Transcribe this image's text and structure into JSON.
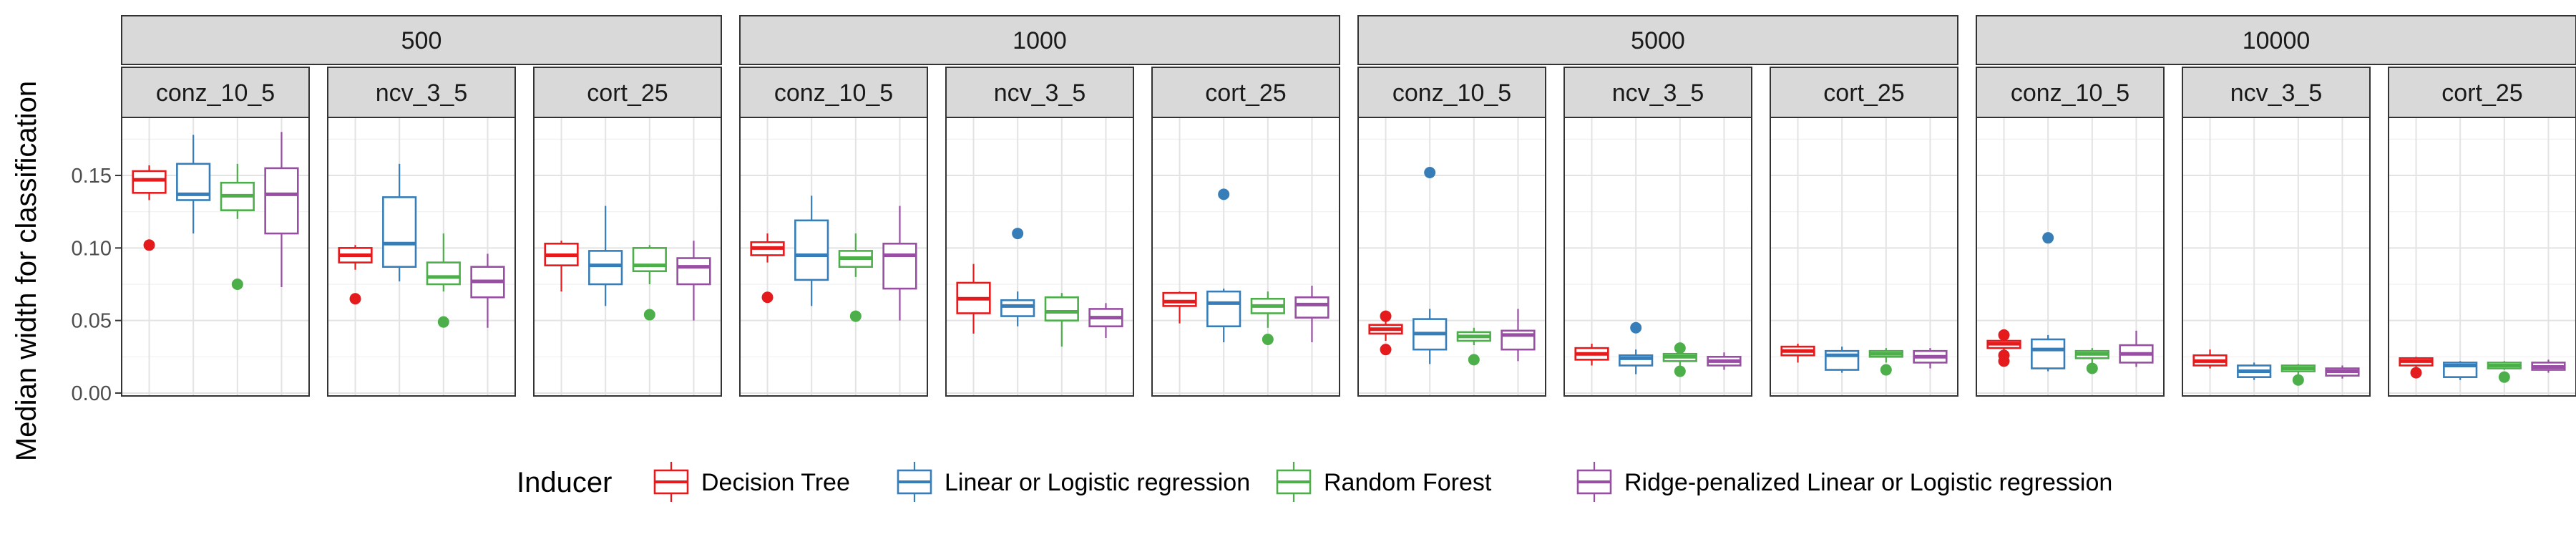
{
  "chart_data": {
    "type": "boxplot",
    "ylabel": "Median width for classification",
    "ylim": [
      -0.002,
      0.19
    ],
    "yticks": [
      0.0,
      0.05,
      0.1,
      0.15
    ],
    "ytick_labels": [
      "0.00",
      "0.05",
      "0.10",
      "0.15"
    ],
    "grid": true,
    "legend_position": "bottom",
    "legend": {
      "title": "Inducer",
      "entries": [
        {
          "name": "Decision Tree",
          "color": "#e41a1c"
        },
        {
          "name": "Linear or Logistic regression",
          "color": "#377eb8"
        },
        {
          "name": "Random Forest",
          "color": "#4daf4a"
        },
        {
          "name": "Ridge-penalized Linear or Logistic regression",
          "color": "#984ea3"
        }
      ]
    },
    "groups": [
      {
        "label": "500",
        "panels": [
          {
            "label": "conz_10_5",
            "boxes": [
              {
                "min": 0.133,
                "q1": 0.138,
                "median": 0.147,
                "q3": 0.153,
                "max": 0.157,
                "outliers": [
                  0.102
                ]
              },
              {
                "min": 0.11,
                "q1": 0.133,
                "median": 0.137,
                "q3": 0.158,
                "max": 0.178,
                "outliers": []
              },
              {
                "min": 0.12,
                "q1": 0.126,
                "median": 0.136,
                "q3": 0.145,
                "max": 0.158,
                "outliers": [
                  0.075
                ]
              },
              {
                "min": 0.073,
                "q1": 0.11,
                "median": 0.137,
                "q3": 0.155,
                "max": 0.18,
                "outliers": []
              }
            ]
          },
          {
            "label": "ncv_3_5",
            "boxes": [
              {
                "min": 0.085,
                "q1": 0.09,
                "median": 0.095,
                "q3": 0.1,
                "max": 0.102,
                "outliers": [
                  0.065
                ]
              },
              {
                "min": 0.077,
                "q1": 0.087,
                "median": 0.103,
                "q3": 0.135,
                "max": 0.158,
                "outliers": []
              },
              {
                "min": 0.07,
                "q1": 0.075,
                "median": 0.08,
                "q3": 0.09,
                "max": 0.11,
                "outliers": [
                  0.049
                ]
              },
              {
                "min": 0.045,
                "q1": 0.066,
                "median": 0.077,
                "q3": 0.087,
                "max": 0.096,
                "outliers": []
              }
            ]
          },
          {
            "label": "cort_25",
            "boxes": [
              {
                "min": 0.07,
                "q1": 0.088,
                "median": 0.095,
                "q3": 0.103,
                "max": 0.105,
                "outliers": []
              },
              {
                "min": 0.06,
                "q1": 0.075,
                "median": 0.088,
                "q3": 0.098,
                "max": 0.129,
                "outliers": []
              },
              {
                "min": 0.075,
                "q1": 0.084,
                "median": 0.088,
                "q3": 0.1,
                "max": 0.102,
                "outliers": [
                  0.054
                ]
              },
              {
                "min": 0.05,
                "q1": 0.075,
                "median": 0.087,
                "q3": 0.093,
                "max": 0.105,
                "outliers": []
              }
            ]
          }
        ]
      },
      {
        "label": "1000",
        "panels": [
          {
            "label": "conz_10_5",
            "boxes": [
              {
                "min": 0.09,
                "q1": 0.095,
                "median": 0.1,
                "q3": 0.104,
                "max": 0.11,
                "outliers": [
                  0.066
                ]
              },
              {
                "min": 0.06,
                "q1": 0.078,
                "median": 0.095,
                "q3": 0.119,
                "max": 0.136,
                "outliers": []
              },
              {
                "min": 0.08,
                "q1": 0.087,
                "median": 0.093,
                "q3": 0.098,
                "max": 0.11,
                "outliers": [
                  0.053
                ]
              },
              {
                "min": 0.05,
                "q1": 0.072,
                "median": 0.095,
                "q3": 0.103,
                "max": 0.129,
                "outliers": []
              }
            ]
          },
          {
            "label": "ncv_3_5",
            "boxes": [
              {
                "min": 0.041,
                "q1": 0.055,
                "median": 0.065,
                "q3": 0.076,
                "max": 0.089,
                "outliers": []
              },
              {
                "min": 0.046,
                "q1": 0.053,
                "median": 0.06,
                "q3": 0.064,
                "max": 0.07,
                "outliers": [
                  0.11
                ]
              },
              {
                "min": 0.032,
                "q1": 0.05,
                "median": 0.056,
                "q3": 0.066,
                "max": 0.069,
                "outliers": []
              },
              {
                "min": 0.038,
                "q1": 0.046,
                "median": 0.052,
                "q3": 0.058,
                "max": 0.062,
                "outliers": []
              }
            ]
          },
          {
            "label": "cort_25",
            "boxes": [
              {
                "min": 0.048,
                "q1": 0.06,
                "median": 0.063,
                "q3": 0.069,
                "max": 0.07,
                "outliers": []
              },
              {
                "min": 0.035,
                "q1": 0.046,
                "median": 0.062,
                "q3": 0.07,
                "max": 0.072,
                "outliers": [
                  0.137
                ]
              },
              {
                "min": 0.045,
                "q1": 0.055,
                "median": 0.06,
                "q3": 0.065,
                "max": 0.07,
                "outliers": [
                  0.037
                ]
              },
              {
                "min": 0.035,
                "q1": 0.052,
                "median": 0.061,
                "q3": 0.066,
                "max": 0.074,
                "outliers": []
              }
            ]
          }
        ]
      },
      {
        "label": "5000",
        "panels": [
          {
            "label": "conz_10_5",
            "boxes": [
              {
                "min": 0.036,
                "q1": 0.041,
                "median": 0.044,
                "q3": 0.047,
                "max": 0.05,
                "outliers": [
                  0.03,
                  0.053
                ]
              },
              {
                "min": 0.02,
                "q1": 0.03,
                "median": 0.041,
                "q3": 0.051,
                "max": 0.058,
                "outliers": [
                  0.152
                ]
              },
              {
                "min": 0.033,
                "q1": 0.036,
                "median": 0.039,
                "q3": 0.042,
                "max": 0.045,
                "outliers": [
                  0.023
                ]
              },
              {
                "min": 0.022,
                "q1": 0.03,
                "median": 0.04,
                "q3": 0.043,
                "max": 0.058,
                "outliers": []
              }
            ]
          },
          {
            "label": "ncv_3_5",
            "boxes": [
              {
                "min": 0.019,
                "q1": 0.023,
                "median": 0.027,
                "q3": 0.031,
                "max": 0.034,
                "outliers": []
              },
              {
                "min": 0.013,
                "q1": 0.019,
                "median": 0.024,
                "q3": 0.026,
                "max": 0.03,
                "outliers": [
                  0.045
                ]
              },
              {
                "min": 0.018,
                "q1": 0.022,
                "median": 0.025,
                "q3": 0.027,
                "max": 0.029,
                "outliers": [
                  0.015,
                  0.031
                ]
              },
              {
                "min": 0.016,
                "q1": 0.019,
                "median": 0.022,
                "q3": 0.025,
                "max": 0.028,
                "outliers": []
              }
            ]
          },
          {
            "label": "cort_25",
            "boxes": [
              {
                "min": 0.021,
                "q1": 0.026,
                "median": 0.029,
                "q3": 0.032,
                "max": 0.034,
                "outliers": []
              },
              {
                "min": 0.014,
                "q1": 0.016,
                "median": 0.026,
                "q3": 0.029,
                "max": 0.032,
                "outliers": []
              },
              {
                "min": 0.021,
                "q1": 0.025,
                "median": 0.027,
                "q3": 0.029,
                "max": 0.031,
                "outliers": [
                  0.016
                ]
              },
              {
                "min": 0.017,
                "q1": 0.021,
                "median": 0.025,
                "q3": 0.029,
                "max": 0.031,
                "outliers": []
              }
            ]
          }
        ]
      },
      {
        "label": "10000",
        "panels": [
          {
            "label": "conz_10_5",
            "boxes": [
              {
                "min": 0.029,
                "q1": 0.031,
                "median": 0.034,
                "q3": 0.036,
                "max": 0.038,
                "outliers": [
                  0.022,
                  0.026,
                  0.04
                ]
              },
              {
                "min": 0.015,
                "q1": 0.017,
                "median": 0.03,
                "q3": 0.037,
                "max": 0.04,
                "outliers": [
                  0.107
                ]
              },
              {
                "min": 0.02,
                "q1": 0.024,
                "median": 0.027,
                "q3": 0.029,
                "max": 0.031,
                "outliers": [
                  0.017
                ]
              },
              {
                "min": 0.018,
                "q1": 0.021,
                "median": 0.027,
                "q3": 0.033,
                "max": 0.043,
                "outliers": []
              }
            ]
          },
          {
            "label": "ncv_3_5",
            "boxes": [
              {
                "min": 0.017,
                "q1": 0.019,
                "median": 0.022,
                "q3": 0.026,
                "max": 0.03,
                "outliers": []
              },
              {
                "min": 0.009,
                "q1": 0.011,
                "median": 0.015,
                "q3": 0.019,
                "max": 0.021,
                "outliers": []
              },
              {
                "min": 0.012,
                "q1": 0.015,
                "median": 0.017,
                "q3": 0.019,
                "max": 0.02,
                "outliers": [
                  0.009
                ]
              },
              {
                "min": 0.01,
                "q1": 0.012,
                "median": 0.015,
                "q3": 0.017,
                "max": 0.019,
                "outliers": []
              }
            ]
          },
          {
            "label": "cort_25",
            "boxes": [
              {
                "min": 0.017,
                "q1": 0.019,
                "median": 0.022,
                "q3": 0.024,
                "max": 0.025,
                "outliers": [
                  0.014
                ]
              },
              {
                "min": 0.009,
                "q1": 0.011,
                "median": 0.019,
                "q3": 0.021,
                "max": 0.022,
                "outliers": []
              },
              {
                "min": 0.016,
                "q1": 0.017,
                "median": 0.019,
                "q3": 0.021,
                "max": 0.022,
                "outliers": [
                  0.011
                ]
              },
              {
                "min": 0.014,
                "q1": 0.016,
                "median": 0.018,
                "q3": 0.021,
                "max": 0.023,
                "outliers": []
              }
            ]
          }
        ]
      }
    ]
  }
}
